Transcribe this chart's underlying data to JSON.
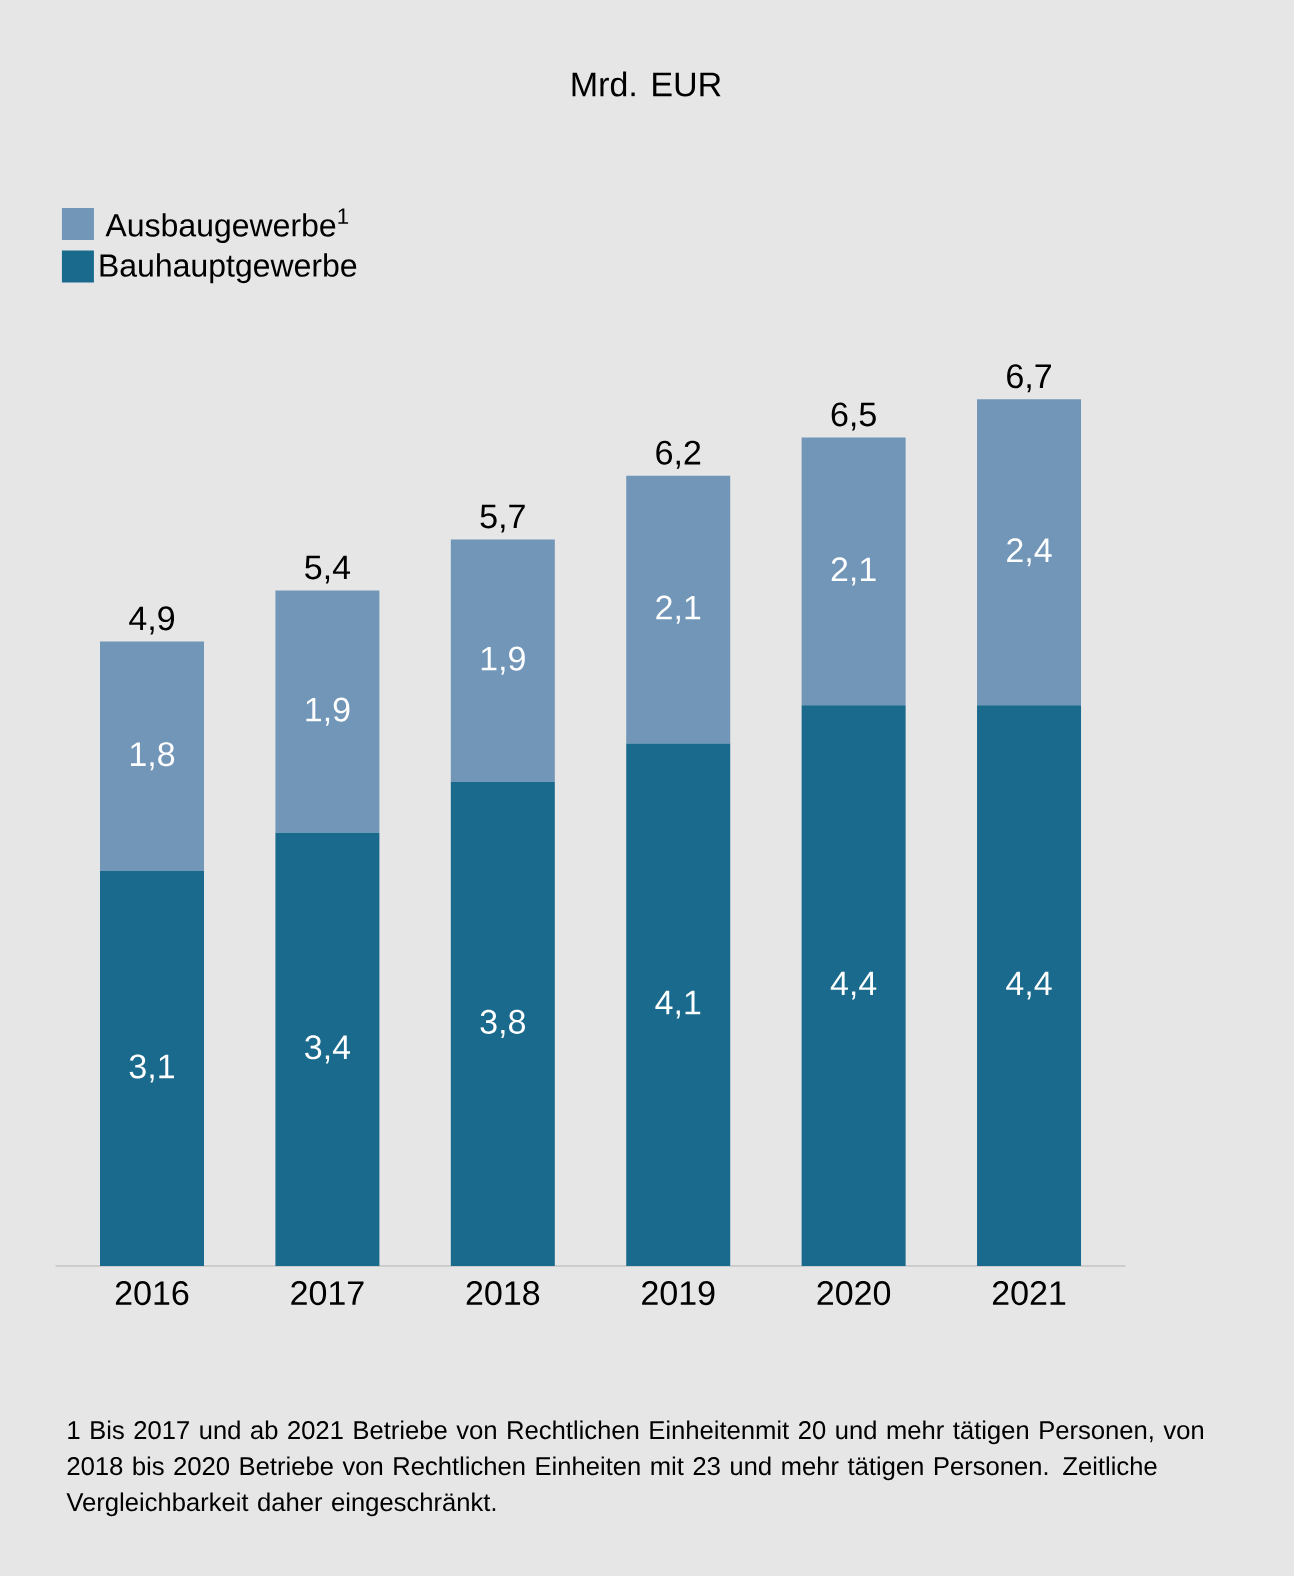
{
  "chart_data": {
    "type": "bar",
    "title": "Mrd. EUR",
    "stacked": true,
    "legend": "top left",
    "categories": [
      "2016",
      "2017",
      "2018",
      "2019",
      "2020",
      "2021"
    ],
    "series": [
      {
        "name": "Bauhauptgewerbe",
        "color": "#1a6a8e",
        "values": [
          3.1,
          3.4,
          3.8,
          4.1,
          4.4,
          4.4
        ],
        "value_labels": [
          "3,1",
          "3,4",
          "3,8",
          "4,1",
          "4,4",
          "4,4"
        ]
      },
      {
        "name": "Ausbaugewerbe$^{1}$",
        "color": "#7196b8",
        "values": [
          1.8,
          1.9,
          1.9,
          2.1,
          2.1,
          2.4
        ],
        "value_labels": [
          "1,8",
          "1,9",
          "1,9",
          "2,1",
          "2,1",
          "2,4"
        ]
      }
    ],
    "totals": [
      "4,9",
      "5,4",
      "5,7",
      "6,2",
      "6,5",
      "6,7"
    ],
    "annotations": [
      "1 Bis 2017 und ab 2021 Betriebe von Rechtlichen Einheitenmit 20 und mehr tätigen Personen, von 2018 bis 2020 Betriebe von Rechtlichen Einheiten mit 23 und mehr tätigen Personen. Zeitliche Vergleichbarkeit daher eingeschränkt."
    ]
  }
}
